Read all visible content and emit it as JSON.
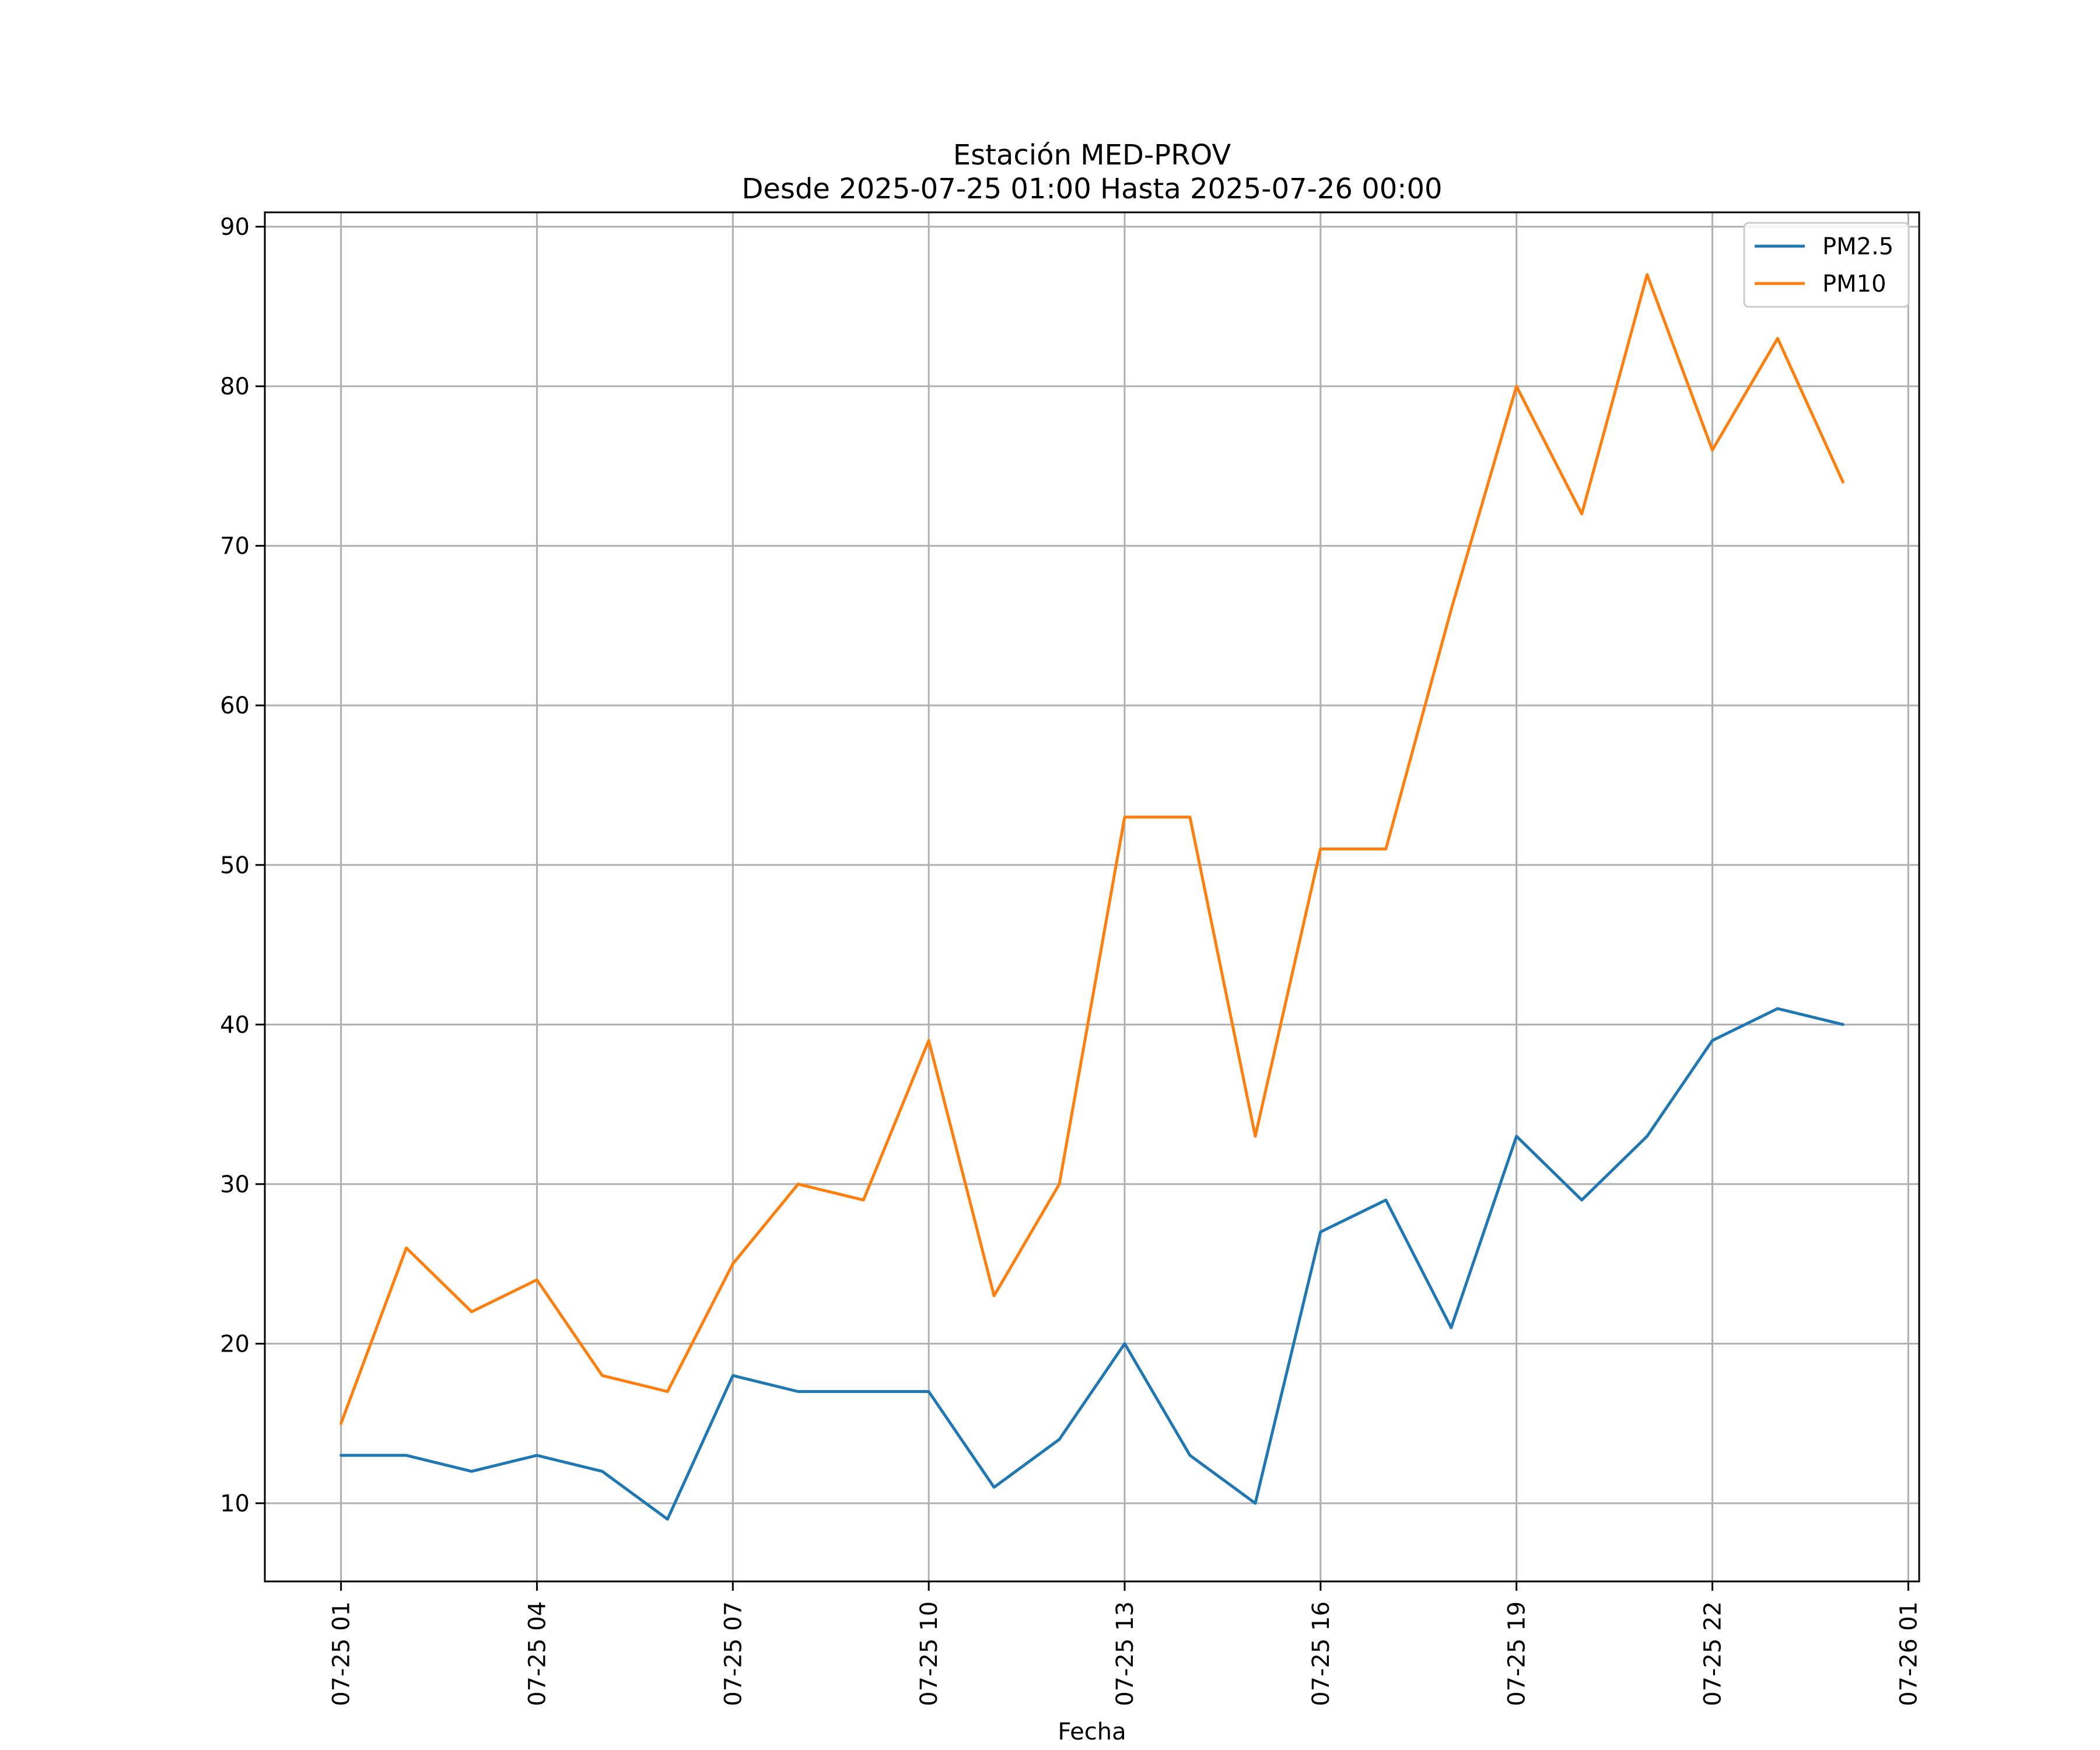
{
  "chart_data": {
    "type": "line",
    "title": "Estación MED-PROV",
    "subtitle": "Desde 2025-07-25 01:00 Hasta 2025-07-26 00:00",
    "xlabel": "Fecha",
    "ylabel": "",
    "x": [
      "2025-07-25 01:00",
      "2025-07-25 02:00",
      "2025-07-25 03:00",
      "2025-07-25 04:00",
      "2025-07-25 05:00",
      "2025-07-25 06:00",
      "2025-07-25 07:00",
      "2025-07-25 08:00",
      "2025-07-25 09:00",
      "2025-07-25 10:00",
      "2025-07-25 11:00",
      "2025-07-25 12:00",
      "2025-07-25 13:00",
      "2025-07-25 14:00",
      "2025-07-25 15:00",
      "2025-07-25 16:00",
      "2025-07-25 17:00",
      "2025-07-25 18:00",
      "2025-07-25 19:00",
      "2025-07-25 20:00",
      "2025-07-25 21:00",
      "2025-07-25 22:00",
      "2025-07-25 23:00",
      "2025-07-26 00:00"
    ],
    "series": [
      {
        "name": "PM2.5",
        "color": "#1f77b4",
        "values": [
          13,
          13,
          12,
          13,
          12,
          9,
          18,
          17,
          17,
          17,
          11,
          14,
          20,
          13,
          10,
          27,
          29,
          21,
          33,
          29,
          33,
          39,
          41,
          40
        ]
      },
      {
        "name": "PM10",
        "color": "#ff7f0e",
        "values": [
          15,
          26,
          22,
          24,
          18,
          17,
          25,
          30,
          29,
          39,
          23,
          30,
          53,
          53,
          33,
          51,
          51,
          66,
          80,
          72,
          87,
          76,
          83,
          74
        ]
      }
    ],
    "x_ticks": [
      "07-25 01",
      "07-25 04",
      "07-25 07",
      "07-25 10",
      "07-25 13",
      "07-25 16",
      "07-25 19",
      "07-25 22",
      "07-26 01"
    ],
    "x_tick_values": [
      "2025-07-25 01:00",
      "2025-07-25 04:00",
      "2025-07-25 07:00",
      "2025-07-25 10:00",
      "2025-07-25 13:00",
      "2025-07-25 16:00",
      "2025-07-25 19:00",
      "2025-07-25 22:00",
      "2025-07-26 01:00"
    ],
    "xlim": [
      "2025-07-24 23:50",
      "2025-07-26 01:10"
    ],
    "y_ticks": [
      10,
      20,
      30,
      40,
      50,
      60,
      70,
      80,
      90
    ],
    "ylim": [
      5.1,
      90.9
    ],
    "grid": true,
    "legend_position": "top-right"
  }
}
